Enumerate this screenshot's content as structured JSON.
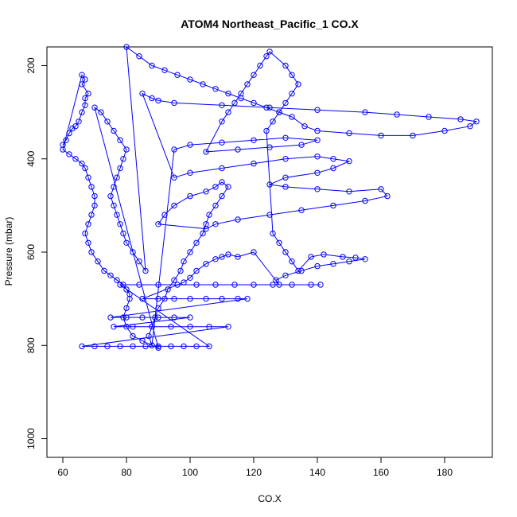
{
  "chart_data": {
    "type": "scatter",
    "title": "ATOM4 Northeast_Pacific_1 CO.X",
    "xlabel": "CO.X",
    "ylabel": "Pressure (mbar)",
    "xlim": [
      55,
      195
    ],
    "ylim": [
      1040,
      160
    ],
    "y_reversed": true,
    "x_ticks": [
      60,
      80,
      100,
      120,
      140,
      160,
      180
    ],
    "y_ticks": [
      200,
      400,
      600,
      800,
      1000
    ],
    "grid": false,
    "legend": "none",
    "series": [
      {
        "color": "#0000ff",
        "marker": "open-circle",
        "connected": true,
        "points": [
          [
            60,
            370
          ],
          [
            61,
            360
          ],
          [
            62,
            345
          ],
          [
            63,
            335
          ],
          [
            64,
            330
          ],
          [
            65,
            320
          ],
          [
            66,
            300
          ],
          [
            67,
            285
          ],
          [
            67,
            270
          ],
          [
            68,
            260
          ],
          [
            66,
            240
          ],
          [
            67,
            230
          ],
          [
            66,
            220
          ],
          [
            60,
            380
          ],
          [
            62,
            390
          ],
          [
            64,
            400
          ],
          [
            66,
            410
          ],
          [
            67,
            420
          ],
          [
            68,
            440
          ],
          [
            69,
            460
          ],
          [
            70,
            480
          ],
          [
            70,
            500
          ],
          [
            69,
            520
          ],
          [
            68,
            540
          ],
          [
            67,
            560
          ],
          [
            68,
            580
          ],
          [
            69,
            600
          ],
          [
            71,
            620
          ],
          [
            73,
            640
          ],
          [
            75,
            650
          ],
          [
            77,
            660
          ],
          [
            79,
            670
          ],
          [
            80,
            680
          ],
          [
            81,
            690
          ],
          [
            81,
            700
          ],
          [
            80,
            720
          ],
          [
            79,
            740
          ],
          [
            80,
            760
          ],
          [
            82,
            780
          ],
          [
            85,
            790
          ],
          [
            88,
            800
          ],
          [
            90,
            805
          ],
          [
            70,
            290
          ],
          [
            72,
            300
          ],
          [
            74,
            320
          ],
          [
            76,
            340
          ],
          [
            78,
            360
          ],
          [
            80,
            380
          ],
          [
            79,
            400
          ],
          [
            78,
            420
          ],
          [
            77,
            440
          ],
          [
            76,
            460
          ],
          [
            75,
            480
          ],
          [
            76,
            500
          ],
          [
            77,
            520
          ],
          [
            78,
            540
          ],
          [
            79,
            560
          ],
          [
            80,
            580
          ],
          [
            82,
            600
          ],
          [
            84,
            620
          ],
          [
            86,
            640
          ],
          [
            80,
            160
          ],
          [
            84,
            180
          ],
          [
            88,
            200
          ],
          [
            92,
            210
          ],
          [
            96,
            220
          ],
          [
            100,
            230
          ],
          [
            104,
            240
          ],
          [
            108,
            250
          ],
          [
            112,
            260
          ],
          [
            116,
            270
          ],
          [
            120,
            280
          ],
          [
            124,
            290
          ],
          [
            128,
            300
          ],
          [
            132,
            310
          ],
          [
            136,
            330
          ],
          [
            140,
            340
          ],
          [
            150,
            345
          ],
          [
            160,
            350
          ],
          [
            170,
            350
          ],
          [
            180,
            340
          ],
          [
            188,
            330
          ],
          [
            190,
            320
          ],
          [
            185,
            315
          ],
          [
            175,
            310
          ],
          [
            165,
            305
          ],
          [
            155,
            300
          ],
          [
            140,
            295
          ],
          [
            125,
            290
          ],
          [
            110,
            285
          ],
          [
            95,
            280
          ],
          [
            90,
            275
          ],
          [
            88,
            270
          ],
          [
            85,
            260
          ],
          [
            95,
            440
          ],
          [
            100,
            430
          ],
          [
            110,
            420
          ],
          [
            120,
            410
          ],
          [
            130,
            400
          ],
          [
            140,
            395
          ],
          [
            145,
            400
          ],
          [
            150,
            405
          ],
          [
            145,
            420
          ],
          [
            140,
            430
          ],
          [
            130,
            440
          ],
          [
            125,
            455
          ],
          [
            130,
            460
          ],
          [
            140,
            465
          ],
          [
            150,
            470
          ],
          [
            160,
            465
          ],
          [
            162,
            480
          ],
          [
            155,
            490
          ],
          [
            145,
            500
          ],
          [
            135,
            510
          ],
          [
            125,
            520
          ],
          [
            115,
            530
          ],
          [
            108,
            540
          ],
          [
            105,
            550
          ],
          [
            90,
            540
          ],
          [
            92,
            520
          ],
          [
            95,
            500
          ],
          [
            100,
            480
          ],
          [
            105,
            470
          ],
          [
            108,
            460
          ],
          [
            110,
            450
          ],
          [
            112,
            460
          ],
          [
            110,
            480
          ],
          [
            108,
            500
          ],
          [
            106,
            520
          ],
          [
            105,
            540
          ],
          [
            104,
            560
          ],
          [
            102,
            580
          ],
          [
            100,
            600
          ],
          [
            98,
            620
          ],
          [
            97,
            640
          ],
          [
            95,
            660
          ],
          [
            93,
            680
          ],
          [
            92,
            700
          ],
          [
            90,
            720
          ],
          [
            89,
            740
          ],
          [
            88,
            760
          ],
          [
            87,
            780
          ],
          [
            88,
            800
          ],
          [
            95,
            380
          ],
          [
            100,
            370
          ],
          [
            110,
            365
          ],
          [
            120,
            360
          ],
          [
            130,
            355
          ],
          [
            140,
            360
          ],
          [
            135,
            370
          ],
          [
            125,
            375
          ],
          [
            115,
            380
          ],
          [
            105,
            385
          ],
          [
            110,
            320
          ],
          [
            112,
            300
          ],
          [
            114,
            280
          ],
          [
            116,
            260
          ],
          [
            118,
            240
          ],
          [
            120,
            220
          ],
          [
            122,
            200
          ],
          [
            124,
            180
          ],
          [
            125,
            170
          ],
          [
            130,
            200
          ],
          [
            132,
            220
          ],
          [
            134,
            240
          ],
          [
            132,
            260
          ],
          [
            130,
            280
          ],
          [
            128,
            300
          ],
          [
            126,
            320
          ],
          [
            124,
            340
          ],
          [
            126,
            560
          ],
          [
            128,
            580
          ],
          [
            130,
            600
          ],
          [
            132,
            620
          ],
          [
            134,
            640
          ],
          [
            138,
            610
          ],
          [
            142,
            605
          ],
          [
            148,
            610
          ],
          [
            152,
            612
          ],
          [
            155,
            615
          ],
          [
            150,
            620
          ],
          [
            145,
            625
          ],
          [
            140,
            630
          ],
          [
            135,
            640
          ],
          [
            130,
            650
          ],
          [
            127,
            660
          ],
          [
            128,
            670
          ],
          [
            120,
            600
          ],
          [
            115,
            610
          ],
          [
            112,
            605
          ],
          [
            110,
            610
          ],
          [
            108,
            615
          ],
          [
            105,
            625
          ],
          [
            102,
            640
          ],
          [
            100,
            655
          ],
          [
            98,
            665
          ],
          [
            85,
            700
          ],
          [
            90,
            700
          ],
          [
            95,
            700
          ],
          [
            100,
            700
          ],
          [
            105,
            700
          ],
          [
            110,
            700
          ],
          [
            115,
            700
          ],
          [
            118,
            700
          ],
          [
            75,
            740
          ],
          [
            80,
            740
          ],
          [
            85,
            740
          ],
          [
            90,
            740
          ],
          [
            95,
            740
          ],
          [
            100,
            740
          ],
          [
            76,
            760
          ],
          [
            82,
            760
          ],
          [
            88,
            760
          ],
          [
            94,
            760
          ],
          [
            100,
            760
          ],
          [
            106,
            760
          ],
          [
            112,
            760
          ],
          [
            66,
            802
          ],
          [
            70,
            802
          ],
          [
            74,
            802
          ],
          [
            78,
            802
          ],
          [
            82,
            802
          ],
          [
            86,
            802
          ],
          [
            90,
            802
          ],
          [
            94,
            802
          ],
          [
            98,
            802
          ],
          [
            102,
            802
          ],
          [
            106,
            802
          ],
          [
            78,
            670
          ],
          [
            84,
            670
          ],
          [
            90,
            670
          ],
          [
            96,
            670
          ],
          [
            102,
            670
          ],
          [
            108,
            670
          ],
          [
            114,
            670
          ],
          [
            120,
            670
          ],
          [
            126,
            670
          ],
          [
            132,
            670
          ],
          [
            138,
            670
          ],
          [
            141,
            670
          ]
        ]
      }
    ]
  }
}
